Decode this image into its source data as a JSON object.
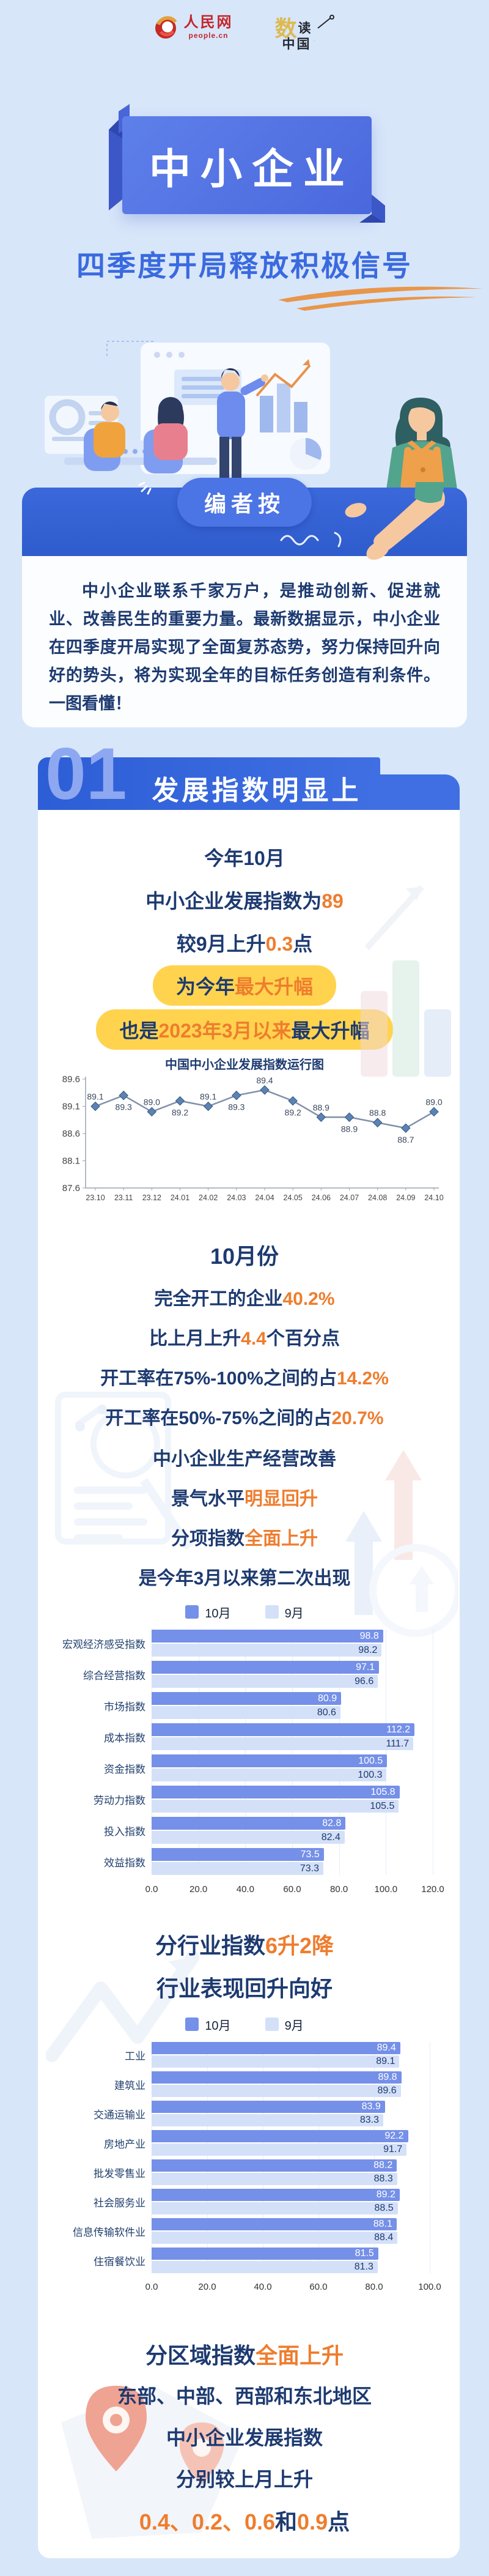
{
  "colors": {
    "page_bg": "#d8e6fa",
    "banner_blue": "#2f5fd6",
    "navy": "#1d3a70",
    "orange": "#ee7d2e",
    "yellow_pill": "#ffd34e",
    "bar_dark": "#7590e8",
    "bar_light": "#d3e0f8",
    "line_stroke": "#8090a8",
    "marker_fill": "#5b82b4"
  },
  "header": {
    "people_logo_cn": "人民网",
    "people_logo_en": "people.cn",
    "shudu_char1": "数",
    "shudu_char2": "读",
    "shudu_char3": "中国"
  },
  "hero": {
    "ribbon_title": "中小企业",
    "subtitle": "四季度开局释放积极信号"
  },
  "editor": {
    "badge": "编者按",
    "text": "中小企业联系千家万户，是推动创新、促进就业、改善民生的重要力量。最新数据显示，中小企业在四季度开局实现了全面复苏态势，努力保持回升向好的势头，将为实现全年的目标任务创造有利条件。一图看懂！"
  },
  "section1": {
    "number": "01",
    "title": "发展指数明显上升",
    "intro": {
      "line1": "今年10月",
      "line2_pre": "中小企业发展指数为",
      "line2_val": "89",
      "line3_pre": "较9月上升",
      "line3_val": "0.3",
      "line3_suf": "点",
      "pill1_pre": "为今年",
      "pill1_hl": "最大升幅",
      "pill2_pre": "也是",
      "pill2_hl": "2023年3月以来",
      "pill2_suf": "最大升幅"
    },
    "october": {
      "heading": "10月份",
      "items": [
        {
          "pre": "完全开工的企业",
          "hl": "40.2%",
          "suf": ""
        },
        {
          "pre": "比上月上升",
          "hl": "4.4",
          "suf": "个百分点"
        },
        {
          "pre": "开工率在75%-100%之间的占",
          "hl": "14.2%",
          "suf": ""
        },
        {
          "pre": "开工率在50%-75%之间的占",
          "hl": "20.7%",
          "suf": ""
        },
        {
          "pre": "中小企业生产经营改善",
          "hl": "",
          "suf": ""
        },
        {
          "pre": "景气水平",
          "hl": "明显回升",
          "suf": ""
        },
        {
          "pre": "分项指数",
          "hl": "全面上升",
          "suf": ""
        },
        {
          "pre": "是今年3月以来第二次出现",
          "hl": "",
          "suf": ""
        }
      ]
    },
    "industry": {
      "heading_pre": "分行业指数",
      "heading_hl": "6升2降",
      "subheading": "行业表现回升向好"
    },
    "region": {
      "heading_pre": "分区域指数",
      "heading_hl": "全面上升",
      "line1": "东部、中部、西部和东北地区",
      "line2": "中小企业发展指数",
      "line3": "分别较上月上升",
      "line4_hl1": "0.4、0.2、0.6",
      "line4_mid": "和",
      "line4_hl2": "0.9",
      "line4_suf": "点"
    }
  },
  "chart_data": [
    {
      "type": "line",
      "title": "中国中小企业发展指数运行图",
      "x": [
        "23.10",
        "23.11",
        "23.12",
        "24.01",
        "24.02",
        "24.03",
        "24.04",
        "24.05",
        "24.06",
        "24.07",
        "24.08",
        "24.09",
        "24.10"
      ],
      "values": [
        89.1,
        89.3,
        89.0,
        89.2,
        89.1,
        89.3,
        89.4,
        89.2,
        88.9,
        88.9,
        88.8,
        88.7,
        89.0
      ],
      "label_pos": [
        "above",
        "below",
        "above",
        "below",
        "above",
        "below",
        "above",
        "below",
        "above",
        "below",
        "above",
        "below",
        "above"
      ],
      "ylim": [
        87.6,
        89.6
      ],
      "yticks": [
        89.6,
        89.1,
        88.6,
        88.1,
        87.6
      ],
      "grid": false,
      "legend_position": "none"
    },
    {
      "type": "bar",
      "orientation": "horizontal",
      "title": "分项指数",
      "categories": [
        "宏观经济感受指数",
        "综合经营指数",
        "市场指数",
        "成本指数",
        "资金指数",
        "劳动力指数",
        "投入指数",
        "效益指数"
      ],
      "series": [
        {
          "name": "10月",
          "values": [
            98.8,
            97.1,
            80.9,
            112.2,
            100.5,
            105.8,
            82.8,
            73.5
          ]
        },
        {
          "name": "9月",
          "values": [
            98.2,
            96.6,
            80.6,
            111.7,
            100.3,
            105.5,
            82.4,
            73.3
          ]
        }
      ],
      "xlim": [
        0,
        120
      ],
      "xticks": [
        "0.0",
        "20.0",
        "40.0",
        "60.0",
        "80.0",
        "100.0",
        "120.0"
      ],
      "legend_position": "top"
    },
    {
      "type": "bar",
      "orientation": "horizontal",
      "title": "分行业指数",
      "categories": [
        "工业",
        "建筑业",
        "交通运输业",
        "房地产业",
        "批发零售业",
        "社会服务业",
        "信息传输软件业",
        "住宿餐饮业"
      ],
      "series": [
        {
          "name": "10月",
          "values": [
            89.4,
            89.8,
            83.9,
            92.2,
            88.2,
            89.2,
            88.1,
            81.5
          ]
        },
        {
          "name": "9月",
          "values": [
            89.1,
            89.6,
            83.3,
            91.7,
            88.3,
            88.5,
            88.4,
            81.3
          ]
        }
      ],
      "xlim": [
        0,
        100
      ],
      "xticks": [
        "0.0",
        "20.0",
        "40.0",
        "60.0",
        "80.0",
        "100.0"
      ],
      "legend_position": "top"
    }
  ]
}
